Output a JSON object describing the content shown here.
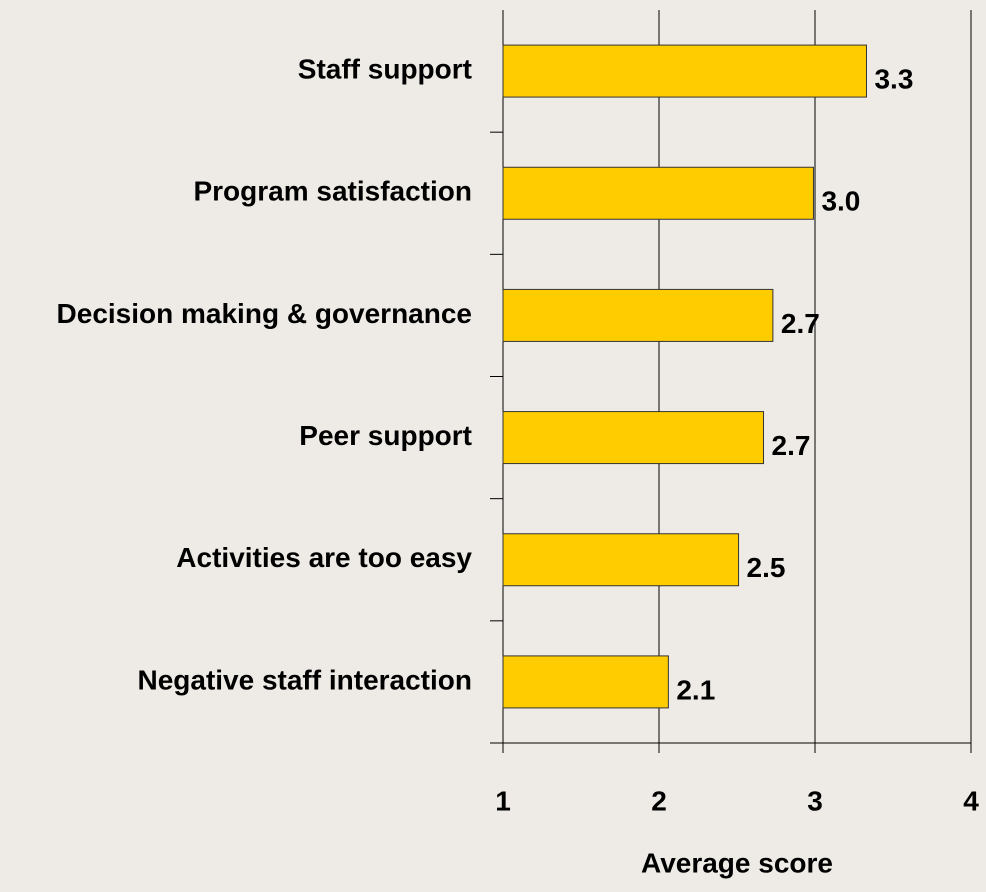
{
  "chart_data": {
    "type": "barh",
    "x_label": "Average score",
    "categories": [
      "Staff support",
      "Program satisfaction",
      "Decision making & governance",
      "Peer support",
      "Activities are too easy",
      "Negative staff interaction"
    ],
    "values": [
      3.33,
      2.99,
      2.73,
      2.67,
      2.51,
      2.06
    ],
    "value_labels": [
      "3.3",
      "3.0",
      "2.7",
      "2.7",
      "2.5",
      "2.1"
    ],
    "color": "#ffcc00",
    "xlim": [
      1,
      4
    ],
    "xticks": [
      1,
      2,
      3,
      4
    ],
    "grid": true
  }
}
